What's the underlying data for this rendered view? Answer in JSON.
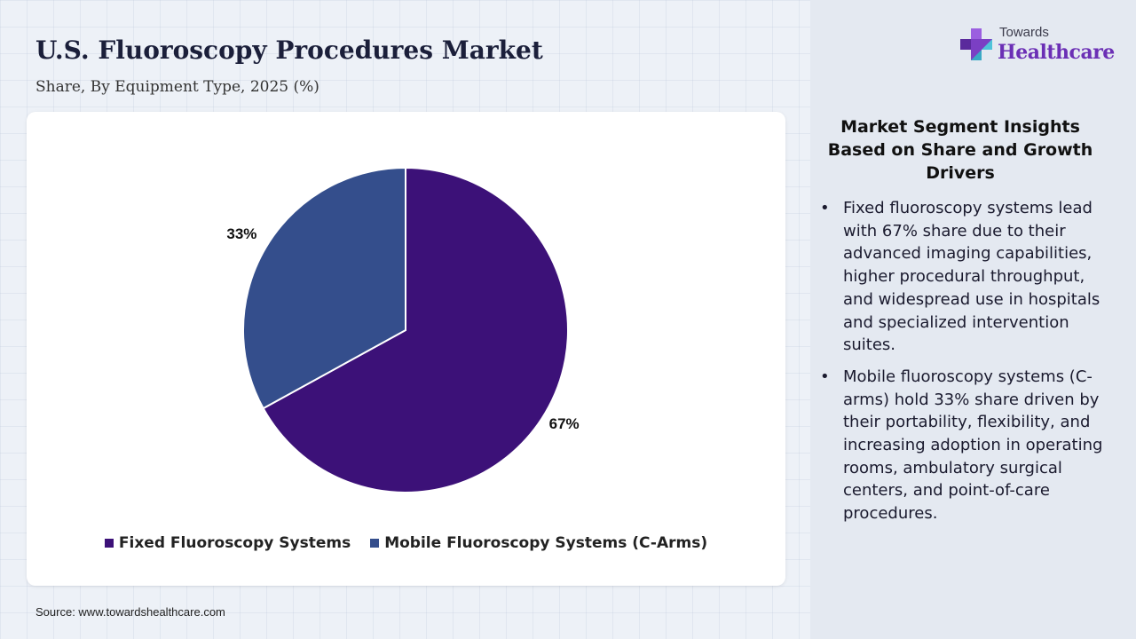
{
  "header": {
    "title": "U.S. Fluoroscopy Procedures Market",
    "subtitle": "Share, By Equipment Type, 2025 (%)"
  },
  "logo": {
    "top_text": "Towards",
    "main_text": "Healthcare",
    "icon": "medical-cross-icon"
  },
  "chart_data": {
    "type": "pie",
    "title": "U.S. Fluoroscopy Procedures Market",
    "subtitle": "Share, By Equipment Type, 2025 (%)",
    "categories": [
      "Fixed Fluoroscopy Systems",
      "Mobile Fluoroscopy Systems (C-Arms)"
    ],
    "values": [
      67,
      33
    ],
    "value_labels": [
      "67%",
      "33%"
    ],
    "colors": [
      "#3c1178",
      "#344e8c"
    ],
    "start_angle_deg": 0,
    "direction": "clockwise",
    "legend_position": "bottom"
  },
  "insights": {
    "title": "Market Segment Insights Based on Share and Growth Drivers",
    "bullet_symbol": "•",
    "items": [
      "Fixed fluoroscopy systems lead with 67% share due to their advanced imaging capabilities, higher procedural throughput, and widespread use in hospitals and specialized intervention suites.",
      "Mobile fluoroscopy systems (C-arms) hold 33% share driven by their portability, flexibility, and increasing adoption in operating rooms, ambulatory surgical centers, and point-of-care procedures."
    ]
  },
  "footer": {
    "source": "Source: www.towardshealthcare.com"
  },
  "theme": {
    "title_color": "#1b1f3a",
    "logo_accent": "#6b2fb5"
  }
}
